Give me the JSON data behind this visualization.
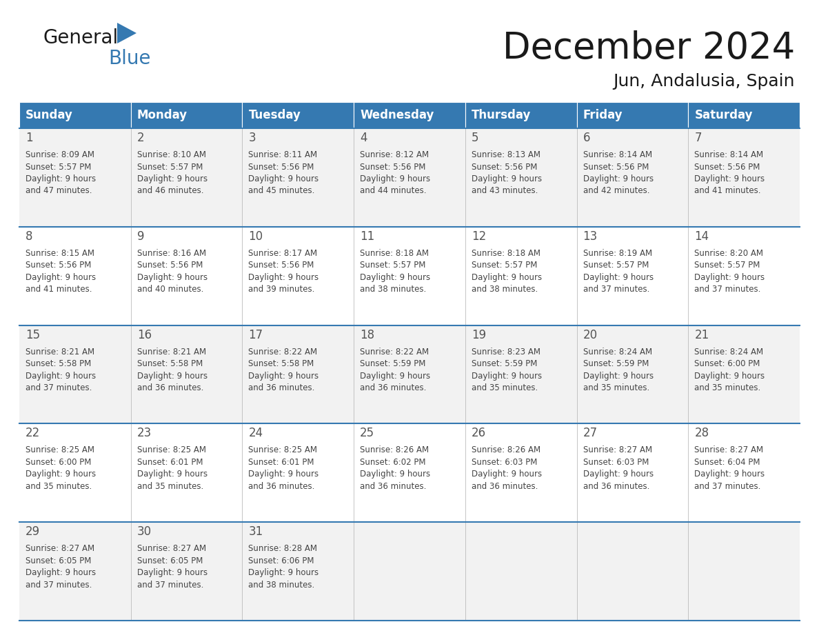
{
  "title": "December 2024",
  "subtitle": "Jun, Andalusia, Spain",
  "header_color": "#3579B1",
  "header_text_color": "#FFFFFF",
  "header_days": [
    "Sunday",
    "Monday",
    "Tuesday",
    "Wednesday",
    "Thursday",
    "Friday",
    "Saturday"
  ],
  "row_bg_even": "#F2F2F2",
  "row_bg_odd": "#FFFFFF",
  "grid_line_color": "#3579B1",
  "text_color": "#444444",
  "day_num_color": "#555555",
  "calendar_data": [
    [
      {
        "day": 1,
        "sunrise": "8:09 AM",
        "sunset": "5:57 PM",
        "daylight": "9 hours and 47 minutes."
      },
      {
        "day": 2,
        "sunrise": "8:10 AM",
        "sunset": "5:57 PM",
        "daylight": "9 hours and 46 minutes."
      },
      {
        "day": 3,
        "sunrise": "8:11 AM",
        "sunset": "5:56 PM",
        "daylight": "9 hours and 45 minutes."
      },
      {
        "day": 4,
        "sunrise": "8:12 AM",
        "sunset": "5:56 PM",
        "daylight": "9 hours and 44 minutes."
      },
      {
        "day": 5,
        "sunrise": "8:13 AM",
        "sunset": "5:56 PM",
        "daylight": "9 hours and 43 minutes."
      },
      {
        "day": 6,
        "sunrise": "8:14 AM",
        "sunset": "5:56 PM",
        "daylight": "9 hours and 42 minutes."
      },
      {
        "day": 7,
        "sunrise": "8:14 AM",
        "sunset": "5:56 PM",
        "daylight": "9 hours and 41 minutes."
      }
    ],
    [
      {
        "day": 8,
        "sunrise": "8:15 AM",
        "sunset": "5:56 PM",
        "daylight": "9 hours and 41 minutes."
      },
      {
        "day": 9,
        "sunrise": "8:16 AM",
        "sunset": "5:56 PM",
        "daylight": "9 hours and 40 minutes."
      },
      {
        "day": 10,
        "sunrise": "8:17 AM",
        "sunset": "5:56 PM",
        "daylight": "9 hours and 39 minutes."
      },
      {
        "day": 11,
        "sunrise": "8:18 AM",
        "sunset": "5:57 PM",
        "daylight": "9 hours and 38 minutes."
      },
      {
        "day": 12,
        "sunrise": "8:18 AM",
        "sunset": "5:57 PM",
        "daylight": "9 hours and 38 minutes."
      },
      {
        "day": 13,
        "sunrise": "8:19 AM",
        "sunset": "5:57 PM",
        "daylight": "9 hours and 37 minutes."
      },
      {
        "day": 14,
        "sunrise": "8:20 AM",
        "sunset": "5:57 PM",
        "daylight": "9 hours and 37 minutes."
      }
    ],
    [
      {
        "day": 15,
        "sunrise": "8:21 AM",
        "sunset": "5:58 PM",
        "daylight": "9 hours and 37 minutes."
      },
      {
        "day": 16,
        "sunrise": "8:21 AM",
        "sunset": "5:58 PM",
        "daylight": "9 hours and 36 minutes."
      },
      {
        "day": 17,
        "sunrise": "8:22 AM",
        "sunset": "5:58 PM",
        "daylight": "9 hours and 36 minutes."
      },
      {
        "day": 18,
        "sunrise": "8:22 AM",
        "sunset": "5:59 PM",
        "daylight": "9 hours and 36 minutes."
      },
      {
        "day": 19,
        "sunrise": "8:23 AM",
        "sunset": "5:59 PM",
        "daylight": "9 hours and 35 minutes."
      },
      {
        "day": 20,
        "sunrise": "8:24 AM",
        "sunset": "5:59 PM",
        "daylight": "9 hours and 35 minutes."
      },
      {
        "day": 21,
        "sunrise": "8:24 AM",
        "sunset": "6:00 PM",
        "daylight": "9 hours and 35 minutes."
      }
    ],
    [
      {
        "day": 22,
        "sunrise": "8:25 AM",
        "sunset": "6:00 PM",
        "daylight": "9 hours and 35 minutes."
      },
      {
        "day": 23,
        "sunrise": "8:25 AM",
        "sunset": "6:01 PM",
        "daylight": "9 hours and 35 minutes."
      },
      {
        "day": 24,
        "sunrise": "8:25 AM",
        "sunset": "6:01 PM",
        "daylight": "9 hours and 36 minutes."
      },
      {
        "day": 25,
        "sunrise": "8:26 AM",
        "sunset": "6:02 PM",
        "daylight": "9 hours and 36 minutes."
      },
      {
        "day": 26,
        "sunrise": "8:26 AM",
        "sunset": "6:03 PM",
        "daylight": "9 hours and 36 minutes."
      },
      {
        "day": 27,
        "sunrise": "8:27 AM",
        "sunset": "6:03 PM",
        "daylight": "9 hours and 36 minutes."
      },
      {
        "day": 28,
        "sunrise": "8:27 AM",
        "sunset": "6:04 PM",
        "daylight": "9 hours and 37 minutes."
      }
    ],
    [
      {
        "day": 29,
        "sunrise": "8:27 AM",
        "sunset": "6:05 PM",
        "daylight": "9 hours and 37 minutes."
      },
      {
        "day": 30,
        "sunrise": "8:27 AM",
        "sunset": "6:05 PM",
        "daylight": "9 hours and 37 minutes."
      },
      {
        "day": 31,
        "sunrise": "8:28 AM",
        "sunset": "6:06 PM",
        "daylight": "9 hours and 38 minutes."
      },
      null,
      null,
      null,
      null
    ]
  ]
}
